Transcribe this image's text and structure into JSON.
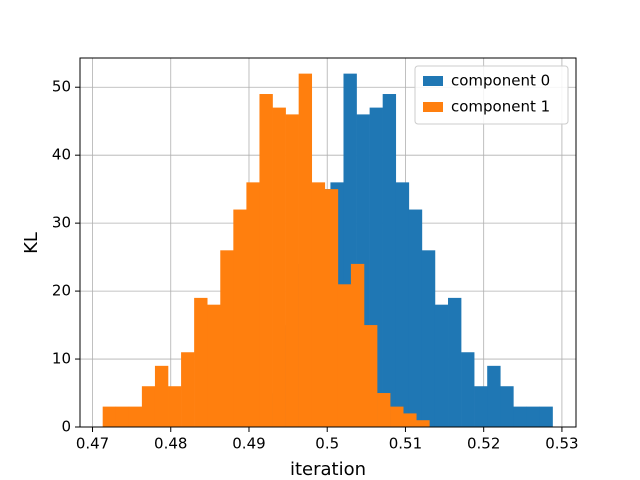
{
  "chart_data": {
    "type": "histogram",
    "xlabel": "iteration",
    "ylabel": "KL",
    "series": [
      {
        "name": "component 0",
        "color": "#1f77b4",
        "bins": [
          0.48705,
          0.48872,
          0.49039,
          0.49206,
          0.49373,
          0.4954,
          0.49707,
          0.49874,
          0.50041,
          0.50208,
          0.50375,
          0.50542,
          0.50709,
          0.50876,
          0.51043,
          0.5121,
          0.51377,
          0.51544,
          0.51711,
          0.51878,
          0.52045,
          0.52212,
          0.52379,
          0.52546,
          0.52713,
          0.5288
        ],
        "values": [
          1,
          2,
          3,
          5,
          15,
          24,
          21,
          35,
          36,
          52,
          46,
          47,
          49,
          36,
          32,
          26,
          18,
          19,
          11,
          6,
          9,
          6,
          3,
          3,
          3
        ]
      },
      {
        "name": "component 1",
        "color": "#ff7f0e",
        "bins": [
          0.4713,
          0.47297,
          0.47464,
          0.47631,
          0.47798,
          0.47965,
          0.48132,
          0.48299,
          0.48466,
          0.48633,
          0.488,
          0.48967,
          0.49134,
          0.49301,
          0.49468,
          0.49635,
          0.49802,
          0.49969,
          0.50136,
          0.50303,
          0.5047,
          0.50637,
          0.50804,
          0.50971,
          0.51138,
          0.51305
        ],
        "values": [
          3,
          3,
          3,
          6,
          9,
          6,
          11,
          19,
          18,
          26,
          32,
          36,
          49,
          47,
          46,
          52,
          36,
          35,
          21,
          24,
          15,
          5,
          3,
          2,
          1
        ]
      }
    ],
    "xlim": [
      0.4684,
      0.5318
    ],
    "xticks": [
      0.47,
      0.48,
      0.49,
      0.5,
      0.51,
      0.52,
      0.53
    ],
    "ylim": [
      0,
      54.3
    ],
    "yticks": [
      0,
      10,
      20,
      30,
      40,
      50
    ],
    "grid": true,
    "legend": "upper right"
  }
}
